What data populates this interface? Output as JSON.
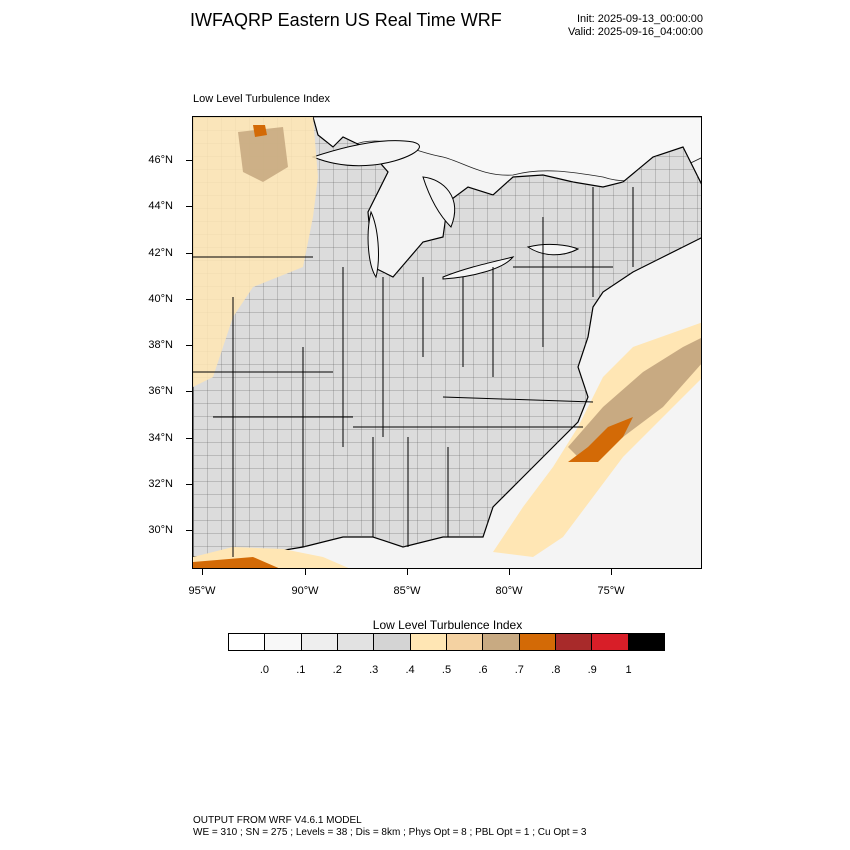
{
  "header": {
    "title": "IWFAQRP Eastern US Real Time WRF",
    "init": "Init: 2025-09-13_00:00:00",
    "valid": "Valid: 2025-09-16_04:00:00"
  },
  "panel": {
    "title": "Low Level Turbulence Index"
  },
  "map": {
    "lat_ticks": [
      "46°N",
      "44°N",
      "42°N",
      "40°N",
      "38°N",
      "36°N",
      "34°N",
      "32°N",
      "30°N"
    ],
    "lon_ticks": [
      "95°W",
      "90°W",
      "85°W",
      "80°W",
      "75°W"
    ],
    "land_color": "#dcdcdc",
    "water_color": "#f4f4f4"
  },
  "colorbar": {
    "title": "Low Level Turbulence Index",
    "colors": [
      "#ffffff",
      "#f8f8f8",
      "#eeeeee",
      "#e2e2e2",
      "#d4d4d4",
      "#ffe6b4",
      "#f4d2a2",
      "#c8aa82",
      "#d36a06",
      "#a82a2a",
      "#d81e28",
      "#000000"
    ],
    "labels": [
      ".0",
      ".1",
      ".2",
      ".3",
      ".4",
      ".5",
      ".6",
      ".7",
      ".8",
      ".9",
      "1"
    ]
  },
  "footer": {
    "line1": "OUTPUT FROM WRF V4.6.1 MODEL",
    "line2": "WE = 310 ; SN = 275 ; Levels = 38 ; Dis = 8km ; Phys Opt = 8 ; PBL Opt = 1 ; Cu Opt = 3"
  }
}
